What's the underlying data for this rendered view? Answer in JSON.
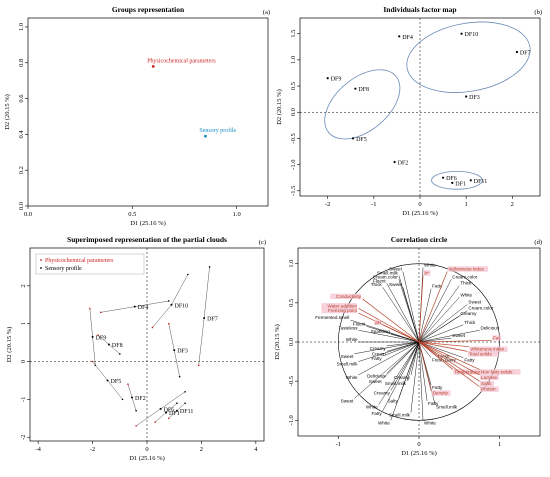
{
  "colors": {
    "physico": "#cc2222",
    "sensory": "#1a8fc4",
    "ellipse": "#6a8bb5",
    "arrow_red": "#b5442c",
    "highlight": "#f5c6d2"
  },
  "chart_data": [
    {
      "type": "scatter",
      "panel": "(a)",
      "title": "Groups representation",
      "xlabel": "D1 (25.16 %)",
      "ylabel": "D2 (20.15 %)",
      "xlim": [
        0,
        1.15
      ],
      "ylim": [
        0,
        1.05
      ],
      "xticks": [
        "0.0",
        "0.5",
        "1.0"
      ],
      "yticks": [
        "0.0",
        "0.2",
        "0.4",
        "0.6",
        "0.8",
        "1.0"
      ],
      "points": [
        {
          "label": "Physicochemical parameters",
          "x": 0.6,
          "y": 0.78,
          "color": "#cc2222"
        },
        {
          "label": "Sensory profile",
          "x": 0.85,
          "y": 0.39,
          "color": "#1a8fc4"
        }
      ]
    },
    {
      "type": "scatter",
      "panel": "(b)",
      "title": "Individuals factor map",
      "xlabel": "D1 (25.16 %)",
      "ylabel": "D2 (20.15 %)",
      "xlim": [
        -2.6,
        2.6
      ],
      "ylim": [
        -1.6,
        1.8
      ],
      "xticks": [
        "-2",
        "-1",
        "0",
        "1",
        "2"
      ],
      "yticks": [
        "-1.5",
        "-1.0",
        "-0.5",
        "0.0",
        "0.5",
        "1.0",
        "1.5"
      ],
      "points": [
        {
          "label": "DF4",
          "x": -0.45,
          "y": 1.45
        },
        {
          "label": "DF10",
          "x": 0.9,
          "y": 1.5
        },
        {
          "label": "DF7",
          "x": 2.1,
          "y": 1.15
        },
        {
          "label": "DF3",
          "x": 1.0,
          "y": 0.3
        },
        {
          "label": "DF9",
          "x": -2.0,
          "y": 0.65
        },
        {
          "label": "DF8",
          "x": -1.4,
          "y": 0.45
        },
        {
          "label": "DF5",
          "x": -1.45,
          "y": -0.5
        },
        {
          "label": "DF2",
          "x": -0.55,
          "y": -0.95
        },
        {
          "label": "DF6",
          "x": 0.5,
          "y": -1.25
        },
        {
          "label": "DF1",
          "x": 0.7,
          "y": -1.35
        },
        {
          "label": "DF11",
          "x": 1.1,
          "y": -1.3
        }
      ]
    },
    {
      "type": "scatter",
      "panel": "(c)",
      "title": "Superimposed representation of the partial clouds",
      "xlabel": "D1 (25.16 %)",
      "ylabel": "D2 (20.15 %)",
      "xlim": [
        -4.3,
        4.3
      ],
      "ylim": [
        -2.1,
        3.0
      ],
      "xticks": [
        "-4",
        "-2",
        "0",
        "2",
        "4"
      ],
      "yticks": [
        "-2",
        "-1",
        "0",
        "1",
        "2"
      ],
      "legend": [
        "Physicochemical parameters",
        "Sensory profile"
      ],
      "legend_position": "top-left",
      "individuals": [
        {
          "label": "DF4",
          "x": -0.45,
          "y": 1.45,
          "phys": [
            -1.7,
            1.3
          ],
          "sens": [
            0.8,
            1.6
          ]
        },
        {
          "label": "DF10",
          "x": 0.9,
          "y": 1.5,
          "phys": [
            0.2,
            0.9
          ],
          "sens": [
            1.5,
            2.3
          ]
        },
        {
          "label": "DF7",
          "x": 2.1,
          "y": 1.15,
          "phys": [
            1.9,
            -0.1
          ],
          "sens": [
            2.3,
            2.5
          ]
        },
        {
          "label": "DF3",
          "x": 1.0,
          "y": 0.3,
          "phys": [
            0.8,
            1.0
          ],
          "sens": [
            1.2,
            -0.4
          ]
        },
        {
          "label": "DF9",
          "x": -2.0,
          "y": 0.65,
          "phys": [
            -2.1,
            1.4
          ],
          "sens": [
            -1.9,
            -0.1
          ]
        },
        {
          "label": "DF8",
          "x": -1.4,
          "y": 0.45,
          "phys": [
            -1.8,
            0.7
          ],
          "sens": [
            -1.0,
            0.2
          ]
        },
        {
          "label": "DF5",
          "x": -1.45,
          "y": -0.5,
          "phys": [
            -2.0,
            0.0
          ],
          "sens": [
            -0.9,
            -1.0
          ]
        },
        {
          "label": "DF2",
          "x": -0.55,
          "y": -0.95,
          "phys": [
            -0.7,
            -0.6
          ],
          "sens": [
            -0.4,
            -1.3
          ]
        },
        {
          "label": "DF6",
          "x": 0.5,
          "y": -1.25,
          "phys": [
            -0.4,
            -1.7
          ],
          "sens": [
            1.4,
            -0.8
          ]
        },
        {
          "label": "DF1",
          "x": 0.7,
          "y": -1.35,
          "phys": [
            0.3,
            -1.6
          ],
          "sens": [
            1.1,
            -1.1
          ]
        },
        {
          "label": "DF11",
          "x": 1.1,
          "y": -1.3,
          "phys": [
            0.8,
            -1.5
          ],
          "sens": [
            1.4,
            -1.1
          ]
        }
      ]
    },
    {
      "type": "scatter",
      "panel": "(d)",
      "title": "Correlation circle",
      "xlabel": "D1 (25.16 %)",
      "ylabel": "D2 (20.15 %)",
      "xlim": [
        -1.5,
        1.5
      ],
      "ylim": [
        -1.2,
        1.2
      ],
      "xticks": [
        "-1",
        "0",
        "1"
      ],
      "yticks": [
        "-1.0",
        "-0.5",
        "0.0",
        "0.5",
        "1.0"
      ],
      "red_vectors": [
        {
          "label": "Yellowness index",
          "x": 0.35,
          "y": 0.9
        },
        {
          "label": "b*",
          "x": 0.05,
          "y": 0.85
        },
        {
          "label": "Conductivity",
          "x": -0.7,
          "y": 0.55
        },
        {
          "label": "Water addition",
          "x": -0.75,
          "y": 0.43
        },
        {
          "label": "Freezing point",
          "x": -0.75,
          "y": 0.37
        },
        {
          "label": "pH",
          "x": -0.45,
          "y": 0.22
        },
        {
          "label": "Fat",
          "x": 0.9,
          "y": 0.02
        },
        {
          "label": "Whiteness index",
          "x": 0.62,
          "y": -0.06
        },
        {
          "label": "Total solids",
          "x": 0.6,
          "y": -0.12
        },
        {
          "label": "Temperature",
          "x": 0.42,
          "y": -0.35
        },
        {
          "label": "Non fatty solids",
          "x": 0.75,
          "y": -0.35
        },
        {
          "label": "Lactose",
          "x": 0.75,
          "y": -0.42
        },
        {
          "label": "Salts",
          "x": 0.75,
          "y": -0.5
        },
        {
          "label": "Protein",
          "x": 0.75,
          "y": -0.57
        },
        {
          "label": "Density",
          "x": 0.15,
          "y": -0.62
        }
      ],
      "black_vectors": [
        {
          "label": "White",
          "x": 0.05,
          "y": 0.95
        },
        {
          "label": "Sweet",
          "x": -0.2,
          "y": 0.9
        },
        {
          "label": "Smell.milk",
          "x": -0.25,
          "y": 0.85
        },
        {
          "label": "Cream.color",
          "x": 0.4,
          "y": 0.8
        },
        {
          "label": "Cream.color",
          "x": -0.25,
          "y": 0.8
        },
        {
          "label": "Thick",
          "x": 0.5,
          "y": 0.72
        },
        {
          "label": "Fluent",
          "x": -0.4,
          "y": 0.75
        },
        {
          "label": "Thick",
          "x": -0.45,
          "y": 0.7
        },
        {
          "label": "Sweet",
          "x": -0.2,
          "y": 0.7
        },
        {
          "label": "Fatty",
          "x": 0.15,
          "y": 0.68
        },
        {
          "label": "White",
          "x": 0.5,
          "y": 0.57
        },
        {
          "label": "Sweet",
          "x": 0.6,
          "y": 0.48
        },
        {
          "label": "Cream.color",
          "x": 0.6,
          "y": 0.4
        },
        {
          "label": "Creamy",
          "x": 0.5,
          "y": 0.33
        },
        {
          "label": "Fermented.smell",
          "x": -0.85,
          "y": 0.28
        },
        {
          "label": "Thick",
          "x": 0.55,
          "y": 0.22
        },
        {
          "label": "Delicious",
          "x": 0.75,
          "y": 0.15
        },
        {
          "label": "Fluent",
          "x": -0.65,
          "y": 0.2
        },
        {
          "label": "Tasteless",
          "x": -0.75,
          "y": 0.15
        },
        {
          "label": "Sparkling",
          "x": -0.35,
          "y": 0.1
        },
        {
          "label": "Sweet",
          "x": 0.4,
          "y": 0.05
        },
        {
          "label": "White",
          "x": -0.75,
          "y": 0.0
        },
        {
          "label": "Creamy",
          "x": -0.4,
          "y": -0.05
        },
        {
          "label": "Cream",
          "x": -0.4,
          "y": -0.12
        },
        {
          "label": "Fatty",
          "x": -0.45,
          "y": -0.18
        },
        {
          "label": "Fatty",
          "x": 0.55,
          "y": -0.2
        },
        {
          "label": "Fresh.Dairy",
          "x": 0.15,
          "y": -0.2
        },
        {
          "label": "Fresh",
          "x": 0.22,
          "y": -0.15
        },
        {
          "label": "Sweet",
          "x": -0.8,
          "y": -0.15
        },
        {
          "label": "Smell.milk",
          "x": -0.75,
          "y": -0.25
        },
        {
          "label": "Delicious",
          "x": -0.4,
          "y": -0.4
        },
        {
          "label": "Sweet",
          "x": -0.45,
          "y": -0.47
        },
        {
          "label": "White",
          "x": -0.75,
          "y": -0.42
        },
        {
          "label": "Creamy",
          "x": -0.1,
          "y": -0.42
        },
        {
          "label": "Smell.milk",
          "x": -0.15,
          "y": -0.5
        },
        {
          "label": "Fatty",
          "x": 0.15,
          "y": -0.55
        },
        {
          "label": "Sweet",
          "x": -0.8,
          "y": -0.72
        },
        {
          "label": "Creamy",
          "x": -0.35,
          "y": -0.62
        },
        {
          "label": "White",
          "x": -0.5,
          "y": -0.8
        },
        {
          "label": "Salty",
          "x": -0.25,
          "y": -0.72
        },
        {
          "label": "Fatty",
          "x": -0.45,
          "y": -0.88
        },
        {
          "label": "White",
          "x": -0.35,
          "y": -1.0
        },
        {
          "label": "Smell.milk",
          "x": -0.1,
          "y": -0.9
        },
        {
          "label": "White",
          "x": 0.05,
          "y": -1.0
        },
        {
          "label": "Smell.milk",
          "x": 0.2,
          "y": -0.8
        },
        {
          "label": "Fatty",
          "x": 0.1,
          "y": -0.75
        }
      ]
    }
  ]
}
